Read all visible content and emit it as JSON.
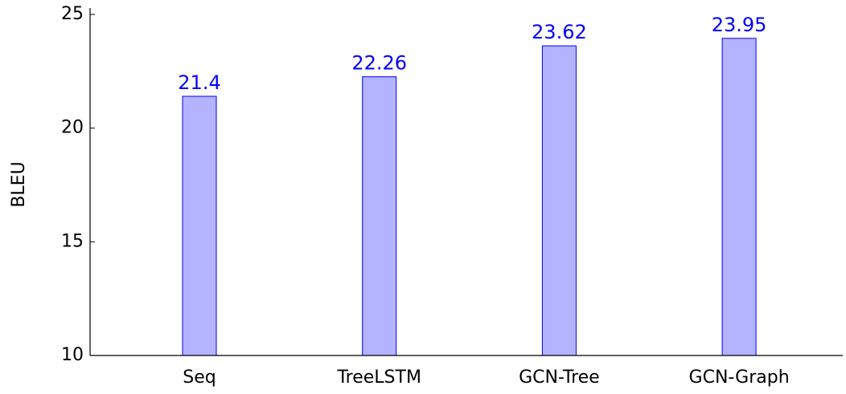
{
  "chart_data": {
    "type": "bar",
    "y_label": "BLEU",
    "categories": [
      "Seq",
      "TreeLSTM",
      "GCN-Tree",
      "GCN-Graph"
    ],
    "values": [
      21.4,
      22.26,
      23.62,
      23.95
    ],
    "color": "#b3b3ff",
    "edge_color": "#0000ff",
    "label_color": "#0000ff",
    "ylim": [
      10,
      25
    ],
    "yticks": [
      10,
      15,
      20,
      25
    ]
  }
}
